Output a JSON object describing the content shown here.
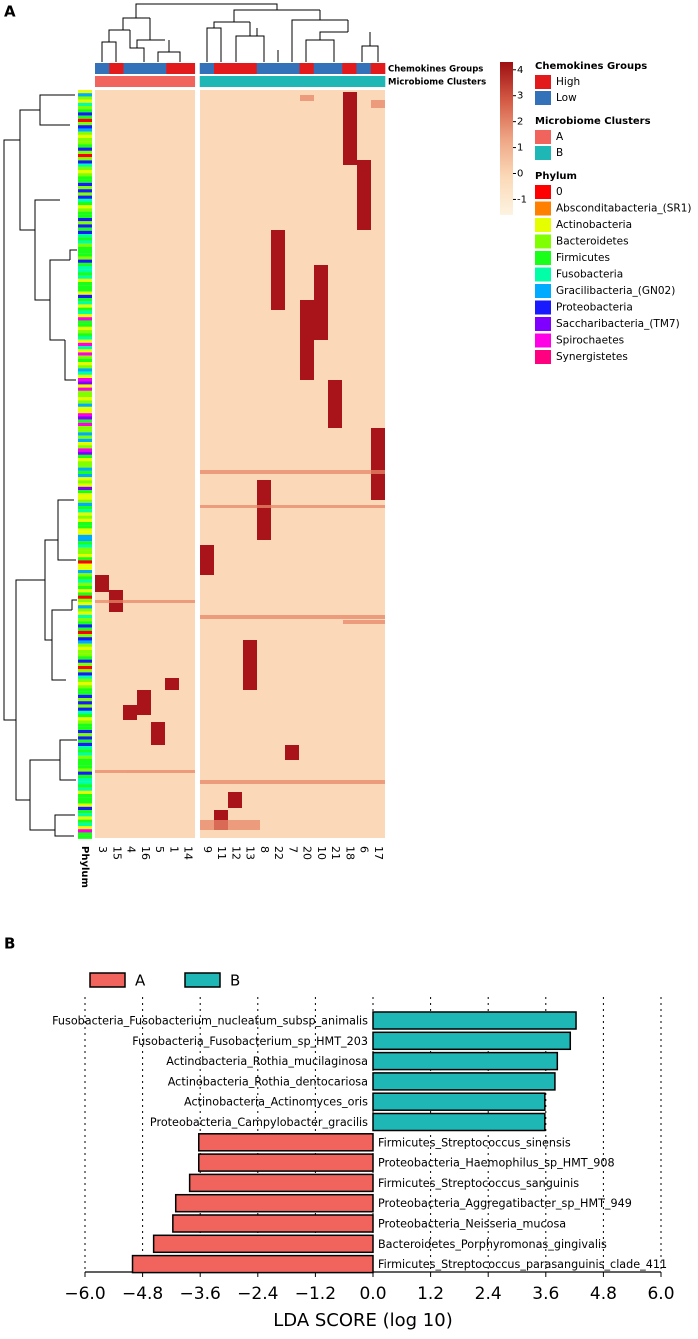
{
  "chart_data": [
    {
      "type": "heatmap",
      "panel": "A",
      "columns": [
        "3",
        "15",
        "4",
        "16",
        "5",
        "1",
        "14",
        "9",
        "11",
        "12",
        "13",
        "8",
        "22",
        "7",
        "20",
        "10",
        "21",
        "18",
        "6",
        "17"
      ],
      "row_annotation_label": "Phylum",
      "column_annotations": [
        {
          "name": "Chemokines Groups",
          "values": [
            "Low",
            "High",
            "Low",
            "Low",
            "Low",
            "High",
            "High",
            "Low",
            "High",
            "High",
            "High",
            "Low",
            "Low",
            "Low",
            "High",
            "Low",
            "Low",
            "High",
            "Low",
            "High"
          ]
        },
        {
          "name": "Microbiome Clusters",
          "values": [
            "A",
            "A",
            "A",
            "A",
            "A",
            "A",
            "A",
            "B",
            "B",
            "B",
            "B",
            "B",
            "B",
            "B",
            "B",
            "B",
            "B",
            "B",
            "B",
            "B"
          ]
        }
      ],
      "colorbar": {
        "ylim": [
          -1.6,
          4.3
        ],
        "yticks": [
          4,
          3,
          2,
          1,
          0,
          -1
        ],
        "colors": [
          "#fdf3e1",
          "#fbd9b8",
          "#eea584",
          "#d45a45",
          "#9e0f12"
        ]
      },
      "legend": [
        {
          "title": "Chemokines Groups",
          "items": [
            {
              "name": "High",
              "color": "#e31a1c"
            },
            {
              "name": "Low",
              "color": "#3372b8"
            }
          ]
        },
        {
          "title": "Microbiome Clusters",
          "items": [
            {
              "name": "A",
              "color": "#f1645d"
            },
            {
              "name": "B",
              "color": "#1fb6b6"
            }
          ]
        },
        {
          "title": "Phylum",
          "items": [
            {
              "name": "0",
              "color": "#ff0000"
            },
            {
              "name": "Absconditabacteria_(SR1)",
              "color": "#ff8000"
            },
            {
              "name": "Actinobacteria",
              "color": "#e6ff00"
            },
            {
              "name": "Bacteroidetes",
              "color": "#80ff00"
            },
            {
              "name": "Firmicutes",
              "color": "#1aff1a"
            },
            {
              "name": "Fusobacteria",
              "color": "#00ffa6"
            },
            {
              "name": "Gracilibacteria_(GN02)",
              "color": "#00aaff"
            },
            {
              "name": "Proteobacteria",
              "color": "#1a1aff"
            },
            {
              "name": "Saccharibacteria_(TM7)",
              "color": "#8000ff"
            },
            {
              "name": "Spirochaetes",
              "color": "#ff00e6"
            },
            {
              "name": "Synergistetes",
              "color": "#ff0080"
            }
          ]
        }
      ]
    },
    {
      "type": "hbar",
      "panel": "B",
      "categories": [
        "Fusobacteria_Fusobacterium_nucleatum_subsp_animalis",
        "Fusobacteria_Fusobacterium_sp_HMT_203",
        "Actinobacteria_Rothia_mucilaginosa",
        "Actinobacteria_Rothia_dentocariosa",
        "Actinobacteria_Actinomyces_oris",
        "Proteobacteria_Campylobacter_gracilis",
        "Firmicutes_Streptococcus_sinensis",
        "Proteobacteria_Haemophilus_sp_HMT_908",
        "Firmicutes_Streptococcus_sanguinis",
        "Proteobacteria_Aggregatibacter_sp_HMT_949",
        "Proteobacteria_Neisseria_mucosa",
        "Bacteroidetes_Porphyromonas_gingivalis",
        "Firmicutes_Streptococcus_parasanguinis_clade_411"
      ],
      "series": [
        {
          "name": "A",
          "color": "#f1645d",
          "values": [
            null,
            null,
            null,
            null,
            null,
            null,
            -3.63,
            -3.63,
            -3.82,
            -4.11,
            -4.17,
            -4.57,
            -5.01
          ]
        },
        {
          "name": "B",
          "color": "#1fb6b6",
          "values": [
            4.23,
            4.11,
            3.84,
            3.79,
            3.58,
            3.58,
            null,
            null,
            null,
            null,
            null,
            null,
            null
          ]
        }
      ],
      "xlabel": "LDA SCORE (log 10)",
      "xlim": [
        -6.0,
        6.0
      ],
      "xticks": [
        {
          "value": -6.0,
          "label": "−6.0"
        },
        {
          "value": -4.8,
          "label": "−4.8"
        },
        {
          "value": -3.6,
          "label": "−3.6"
        },
        {
          "value": -2.4,
          "label": "−2.4"
        },
        {
          "value": -1.2,
          "label": "−1.2"
        },
        {
          "value": 0.0,
          "label": "0.0"
        },
        1.2,
        2.4,
        3.6,
        4.8,
        {
          "value": 6.0,
          "label": "6.0"
        }
      ],
      "grid": true
    }
  ]
}
